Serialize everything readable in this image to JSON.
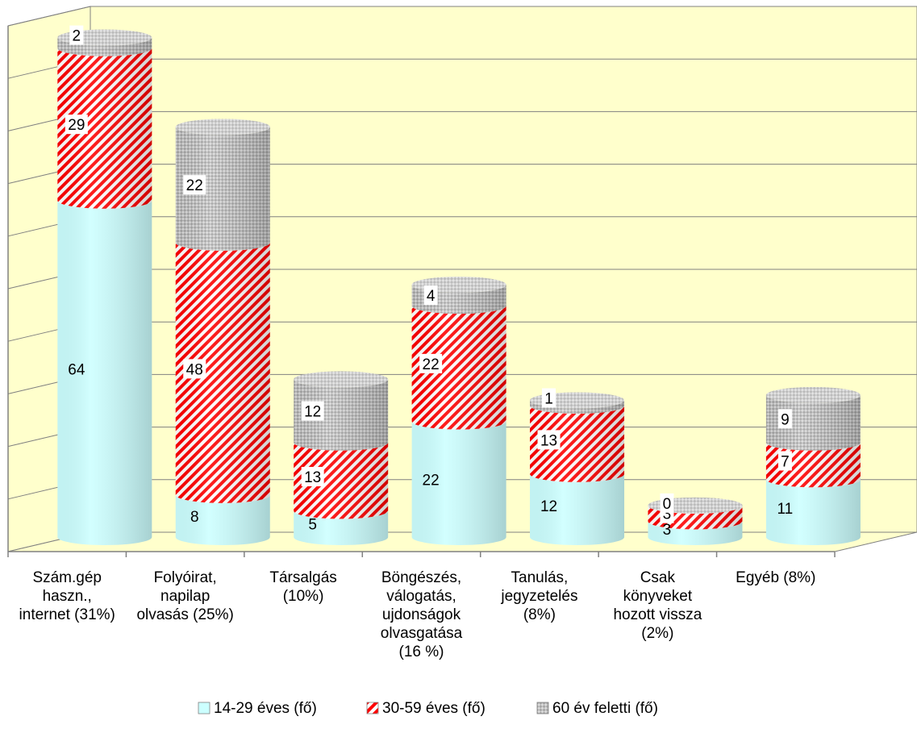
{
  "chart_data": {
    "type": "bar",
    "stacked": true,
    "style": "3d-cylinder",
    "categories": [
      [
        "Szám.gép",
        "haszn.,",
        "internet (31%)"
      ],
      [
        "Folyóirat,",
        "napilap",
        "olvasás (25%)"
      ],
      [
        "Társalgás",
        "(10%)"
      ],
      [
        "Böngészés,",
        "válogatás,",
        "ujdonságok",
        "olvasgatása",
        "(16 %)"
      ],
      [
        "Tanulás,",
        "jegyzetelés",
        "(8%)"
      ],
      [
        "Csak",
        "könyveket",
        "hozott vissza",
        "(2%)"
      ],
      [
        "Egyéb (8%)"
      ]
    ],
    "series": [
      {
        "name": "14-29 éves (fő)",
        "values": [
          64,
          8,
          5,
          22,
          12,
          3,
          11
        ],
        "color": "#ccffff",
        "pattern": "solid"
      },
      {
        "name": "30-59 éves (fő)",
        "values": [
          29,
          48,
          13,
          22,
          13,
          3,
          7
        ],
        "color": "#ff0000",
        "pattern": "diagonal-stripes"
      },
      {
        "name": "60 év feletti (fő)",
        "values": [
          2,
          22,
          12,
          4,
          1,
          0,
          9
        ],
        "color": "#c0c0c0",
        "pattern": "checker"
      }
    ],
    "ylim": [
      0,
      100
    ],
    "grid": true,
    "legend": "bottom",
    "colors": {
      "wall": "#ffffcc",
      "floor": "#ffffcc",
      "grid": "#808080"
    }
  }
}
